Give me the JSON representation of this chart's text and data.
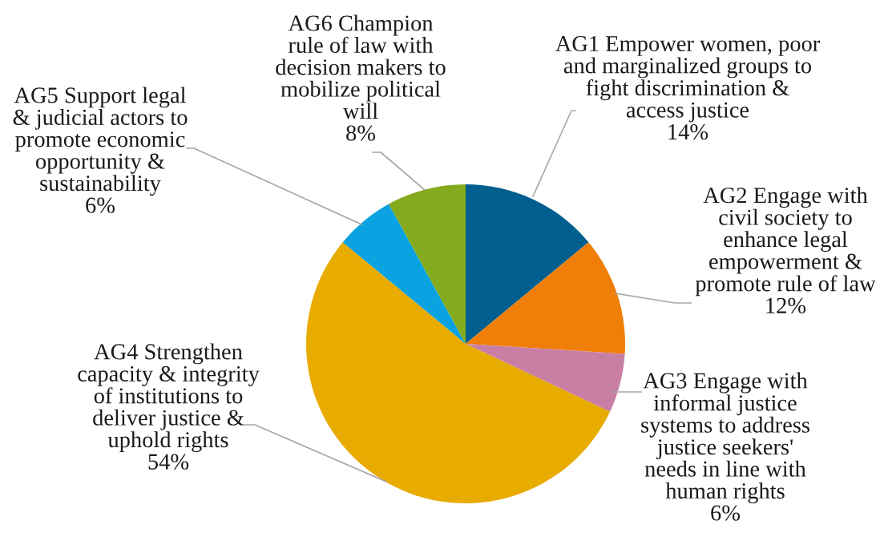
{
  "chart_data": {
    "type": "pie",
    "categories": [
      "AG1 Empower women, poor\nand marginalized groups to\nfight discrimination &\naccess justice",
      "AG2 Engage with\ncivil society to\nenhance legal\nempowerment &\npromote rule of law",
      "AG3 Engage with\ninformal justice\nsystems to address\njustice seekers'\nneeds in line with\nhuman rights",
      "AG4 Strengthen\ncapacity & integrity\nof institutions to\ndeliver justice &\nuphold rights",
      "AG5 Support legal\n& judicial actors to\npromote economic\nopportunity &\nsustainability",
      "AG6 Champion\nrule of law with\ndecision makers to\nmobilize political\nwill"
    ],
    "values": [
      14,
      12,
      6,
      54,
      6,
      8
    ],
    "value_labels": [
      "14%",
      "12%",
      "6%",
      "54%",
      "6%",
      "8%"
    ],
    "colors": [
      "#005f8e",
      "#f07f09",
      "#c97fa4",
      "#e8ab00",
      "#0aa2e0",
      "#84aa1d"
    ]
  }
}
